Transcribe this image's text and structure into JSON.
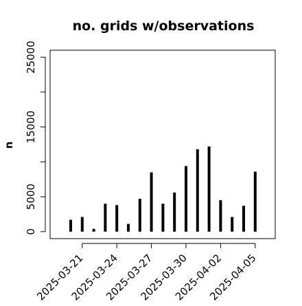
{
  "chart_data": {
    "type": "bar",
    "title": "no. grids w/observations",
    "xlabel": "",
    "ylabel": "n",
    "ylim": [
      -1000,
      26000
    ],
    "yticks": [
      0,
      5000,
      15000,
      25000
    ],
    "grid": false,
    "categories": [
      "2025-03-20",
      "2025-03-21",
      "2025-03-22",
      "2025-03-23",
      "2025-03-24",
      "2025-03-25",
      "2025-03-26",
      "2025-03-27",
      "2025-03-28",
      "2025-03-29",
      "2025-03-30",
      "2025-03-31",
      "2025-04-01",
      "2025-04-02",
      "2025-04-03",
      "2025-04-04",
      "2025-04-05"
    ],
    "values": [
      1700,
      2100,
      400,
      4000,
      3800,
      1100,
      4700,
      8500,
      4000,
      5600,
      9400,
      11800,
      12200,
      4500,
      2100,
      3700,
      8600
    ],
    "xtick_labels": [
      {
        "label": "2025-03-21",
        "category": "2025-03-21",
        "color": "#000000"
      },
      {
        "label": "2025-03-24",
        "category": "2025-03-24",
        "color": "#000000"
      },
      {
        "label": "2025-03-27",
        "category": "2025-03-27",
        "color": "#228B22"
      },
      {
        "label": "2025-03-30",
        "category": "2025-03-30",
        "color": "#000000"
      },
      {
        "label": "2025-04-02",
        "category": "2025-04-02",
        "color": "#000000"
      },
      {
        "label": "2025-04-05",
        "category": "2025-04-05",
        "color": "#000000"
      }
    ],
    "bar_color": "#000000"
  }
}
